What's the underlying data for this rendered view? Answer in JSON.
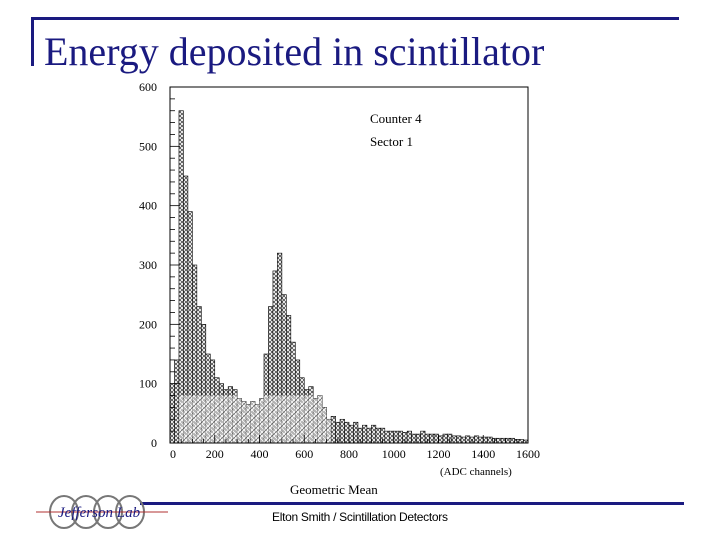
{
  "header": {
    "title": "Energy deposited in scintillator"
  },
  "footer": {
    "text": "Elton Smith / Scintillation Detectors",
    "logo_text": "Jefferson Lab"
  },
  "colors": {
    "accent": "#1a1a80",
    "ink": "#000000"
  },
  "chart_data": {
    "type": "bar",
    "title": "",
    "xlabel": "Geometric Mean",
    "xunits": "(ADC channels)",
    "ylabel": "",
    "xlim": [
      0,
      1600
    ],
    "ylim": [
      0,
      600
    ],
    "xticks": [
      0,
      200,
      400,
      600,
      800,
      1000,
      1200,
      1400,
      1600
    ],
    "yticks": [
      0,
      100,
      200,
      300,
      400,
      500,
      600
    ],
    "annotations": [
      "Counter  4",
      "Sector  1"
    ],
    "grid": false,
    "bin_width": 20,
    "bin_starts": [
      0,
      20,
      40,
      60,
      80,
      100,
      120,
      140,
      160,
      180,
      200,
      220,
      240,
      260,
      280,
      300,
      320,
      340,
      360,
      380,
      400,
      420,
      440,
      460,
      480,
      500,
      520,
      540,
      560,
      580,
      600,
      620,
      640,
      660,
      680,
      700,
      720,
      740,
      760,
      780,
      800,
      820,
      840,
      860,
      880,
      900,
      920,
      940,
      960,
      980,
      1000,
      1020,
      1040,
      1060,
      1080,
      1100,
      1120,
      1140,
      1160,
      1180,
      1200,
      1220,
      1240,
      1260,
      1280,
      1300,
      1320,
      1340,
      1360,
      1380,
      1400,
      1420,
      1440,
      1460,
      1480,
      1500,
      1520,
      1540,
      1560,
      1580
    ],
    "series": [
      {
        "values": [
          100,
          140,
          560,
          450,
          390,
          300,
          230,
          200,
          150,
          140,
          110,
          100,
          90,
          95,
          90,
          75,
          70,
          65,
          70,
          65,
          75,
          150,
          230,
          290,
          320,
          250,
          215,
          170,
          140,
          110,
          90,
          95,
          75,
          80,
          60,
          40,
          45,
          35,
          40,
          35,
          30,
          35,
          25,
          30,
          25,
          30,
          25,
          25,
          20,
          20,
          20,
          20,
          18,
          20,
          15,
          15,
          20,
          15,
          15,
          15,
          12,
          15,
          15,
          12,
          12,
          10,
          12,
          10,
          12,
          10,
          10,
          10,
          8,
          8,
          8,
          8,
          8,
          6,
          6,
          5
        ]
      }
    ]
  }
}
